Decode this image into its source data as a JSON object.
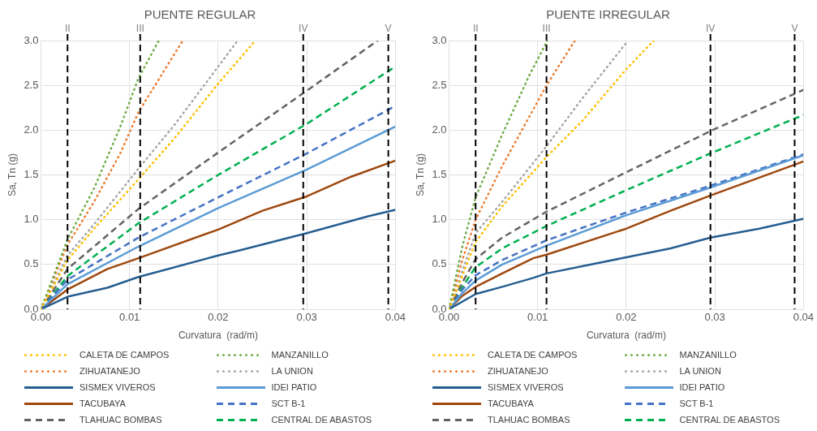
{
  "chart_data": [
    {
      "type": "line",
      "title": "PUENTE REGULAR",
      "xlabel": "Curvatura  (rad/m)",
      "ylabel": "Sa, Tn (g)",
      "xlim": [
        0,
        0.04
      ],
      "ylim": [
        0,
        3
      ],
      "xticks": [
        {
          "value": 0,
          "label": "0.00"
        },
        {
          "value": 0.01,
          "label": "0.01"
        },
        {
          "value": 0.02,
          "label": "0.02"
        },
        {
          "value": 0.03,
          "label": "0.03"
        },
        {
          "value": 0.04,
          "label": "0.04"
        }
      ],
      "yticks": [
        {
          "value": 0,
          "label": "0.0"
        },
        {
          "value": 0.5,
          "label": "0.5"
        },
        {
          "value": 1,
          "label": "1.0"
        },
        {
          "value": 1.5,
          "label": "1.5"
        },
        {
          "value": 2,
          "label": "2.0"
        },
        {
          "value": 2.5,
          "label": "2.5"
        },
        {
          "value": 3,
          "label": "3.0"
        }
      ],
      "grid": true,
      "legend": "bottom",
      "marker": "none",
      "ref_lines": [
        {
          "axis": "x",
          "value": 0.003,
          "label": "II",
          "color": "#000000",
          "line_style": "dashed"
        },
        {
          "axis": "x",
          "value": 0.0112,
          "label": "III",
          "color": "#000000",
          "line_style": "dashed"
        },
        {
          "axis": "x",
          "value": 0.0296,
          "label": "IV",
          "color": "#000000",
          "line_style": "dashed"
        },
        {
          "axis": "x",
          "value": 0.0392,
          "label": "V",
          "color": "#000000",
          "line_style": "dashed"
        }
      ],
      "series": [
        {
          "name": "CALETA DE CAMPOS",
          "color": "#ffc000",
          "line_style": "dotted",
          "x": [
            0,
            0.003,
            0.006,
            0.011,
            0.015,
            0.02,
            0.0242
          ],
          "values": [
            0,
            0.55,
            0.9,
            1.45,
            1.9,
            2.52,
            3.0
          ]
        },
        {
          "name": "MANZANILLO",
          "color": "#70ad47",
          "line_style": "dotted",
          "x": [
            0,
            0.003,
            0.006,
            0.009,
            0.011,
            0.0133
          ],
          "values": [
            0,
            0.78,
            1.35,
            2.05,
            2.58,
            3.0
          ]
        },
        {
          "name": "ZIHUATANEJO",
          "color": "#ed7d31",
          "line_style": "dotted",
          "x": [
            0,
            0.003,
            0.006,
            0.009,
            0.011,
            0.016
          ],
          "values": [
            0,
            0.72,
            1.2,
            1.75,
            2.2,
            3.0
          ]
        },
        {
          "name": "LA UNION",
          "color": "#a5a5a5",
          "line_style": "dotted",
          "x": [
            0,
            0.003,
            0.006,
            0.011,
            0.015,
            0.0222
          ],
          "values": [
            0,
            0.6,
            0.95,
            1.57,
            2.05,
            3.0
          ]
        },
        {
          "name": "SISMEX VIVEROS",
          "color": "#255e91",
          "line_style": "solid",
          "x": [
            0,
            0.003,
            0.0075,
            0.011,
            0.02,
            0.0225,
            0.03,
            0.037,
            0.04
          ],
          "values": [
            0,
            0.14,
            0.24,
            0.36,
            0.6,
            0.66,
            0.85,
            1.04,
            1.11
          ]
        },
        {
          "name": "IDEI PATIO",
          "color": "#5b9bd5",
          "line_style": "solid",
          "x": [
            0,
            0.003,
            0.011,
            0.02,
            0.03,
            0.04
          ],
          "values": [
            0,
            0.28,
            0.7,
            1.13,
            1.56,
            2.04
          ]
        },
        {
          "name": "TACUBAYA",
          "color": "#9e480e",
          "line_style": "solid",
          "x": [
            0,
            0.003,
            0.0075,
            0.011,
            0.02,
            0.025,
            0.03,
            0.035,
            0.04
          ],
          "values": [
            0,
            0.22,
            0.45,
            0.57,
            0.89,
            1.1,
            1.26,
            1.48,
            1.66
          ]
        },
        {
          "name": "SCT B-1",
          "color": "#4472c4",
          "line_style": "dashed",
          "x": [
            0,
            0.003,
            0.011,
            0.02,
            0.03,
            0.04
          ],
          "values": [
            0,
            0.33,
            0.8,
            1.25,
            1.74,
            2.27
          ]
        },
        {
          "name": "TLAHUAC BOMBAS",
          "color": "#636363",
          "line_style": "dashed",
          "x": [
            0,
            0.003,
            0.011,
            0.02,
            0.03,
            0.038
          ],
          "values": [
            0,
            0.45,
            1.12,
            1.75,
            2.44,
            3.0
          ]
        },
        {
          "name": "CENTRAL DE ABASTOS",
          "color": "#00b050",
          "line_style": "dashed",
          "x": [
            0,
            0.003,
            0.011,
            0.02,
            0.03,
            0.04
          ],
          "values": [
            0,
            0.37,
            0.96,
            1.5,
            2.07,
            2.71
          ]
        }
      ]
    },
    {
      "type": "line",
      "title": "PUENTE IRREGULAR",
      "xlabel": "Curvatura  (rad/m)",
      "ylabel": "Sa, Tn (g)",
      "xlim": [
        0,
        0.04
      ],
      "ylim": [
        0,
        3
      ],
      "xticks": [
        {
          "value": 0,
          "label": "0.00"
        },
        {
          "value": 0.01,
          "label": "0.01"
        },
        {
          "value": 0.02,
          "label": "0.02"
        },
        {
          "value": 0.03,
          "label": "0.03"
        },
        {
          "value": 0.04,
          "label": "0.04"
        }
      ],
      "yticks": [
        {
          "value": 0,
          "label": "0.0"
        },
        {
          "value": 0.5,
          "label": "0.5"
        },
        {
          "value": 1,
          "label": "1.0"
        },
        {
          "value": 1.5,
          "label": "1.5"
        },
        {
          "value": 2,
          "label": "2.0"
        },
        {
          "value": 2.5,
          "label": "2.5"
        },
        {
          "value": 3,
          "label": "3.0"
        }
      ],
      "grid": true,
      "legend": "bottom",
      "marker": "none",
      "ref_lines": [
        {
          "axis": "x",
          "value": 0.003,
          "label": "II",
          "color": "#000000",
          "line_style": "dashed"
        },
        {
          "axis": "x",
          "value": 0.011,
          "label": "III",
          "color": "#000000",
          "line_style": "dashed"
        },
        {
          "axis": "x",
          "value": 0.0295,
          "label": "IV",
          "color": "#000000",
          "line_style": "dashed"
        },
        {
          "axis": "x",
          "value": 0.039,
          "label": "V",
          "color": "#000000",
          "line_style": "dashed"
        }
      ],
      "series": [
        {
          "name": "CALETA DE CAMPOS",
          "color": "#ffc000",
          "line_style": "dotted",
          "x": [
            0,
            0.003,
            0.006,
            0.011,
            0.015,
            0.02,
            0.0231
          ],
          "values": [
            0,
            0.75,
            1.15,
            1.7,
            2.1,
            2.68,
            3.0
          ]
        },
        {
          "name": "MANZANILLO",
          "color": "#70ad47",
          "line_style": "dotted",
          "x": [
            0,
            0.0015,
            0.003,
            0.006,
            0.009,
            0.0111
          ],
          "values": [
            0,
            0.7,
            1.25,
            1.95,
            2.6,
            3.0
          ]
        },
        {
          "name": "ZIHUATANEJO",
          "color": "#ed7d31",
          "line_style": "dotted",
          "x": [
            0,
            0.0015,
            0.003,
            0.006,
            0.011,
            0.0142
          ],
          "values": [
            0,
            0.55,
            1.0,
            1.6,
            2.5,
            3.0
          ]
        },
        {
          "name": "LA UNION",
          "color": "#a5a5a5",
          "line_style": "dotted",
          "x": [
            0,
            0.003,
            0.006,
            0.011,
            0.015,
            0.0202
          ],
          "values": [
            0,
            0.85,
            1.2,
            1.82,
            2.35,
            3.0
          ]
        },
        {
          "name": "SISMEX VIVEROS",
          "color": "#255e91",
          "line_style": "solid",
          "x": [
            0,
            0.003,
            0.006,
            0.0095,
            0.011,
            0.02,
            0.025,
            0.0295,
            0.035,
            0.04
          ],
          "values": [
            0,
            0.17,
            0.25,
            0.35,
            0.4,
            0.58,
            0.68,
            0.8,
            0.9,
            1.01
          ]
        },
        {
          "name": "IDEI PATIO",
          "color": "#5b9bd5",
          "line_style": "solid",
          "x": [
            0,
            0.0015,
            0.003,
            0.006,
            0.011,
            0.02,
            0.0295,
            0.04
          ],
          "values": [
            0,
            0.18,
            0.32,
            0.5,
            0.71,
            1.05,
            1.36,
            1.72
          ]
        },
        {
          "name": "TACUBAYA",
          "color": "#9e480e",
          "line_style": "solid",
          "x": [
            0,
            0.0015,
            0.003,
            0.006,
            0.0095,
            0.011,
            0.02,
            0.025,
            0.0295,
            0.035,
            0.04
          ],
          "values": [
            0,
            0.15,
            0.25,
            0.4,
            0.57,
            0.61,
            0.9,
            1.1,
            1.27,
            1.47,
            1.65
          ]
        },
        {
          "name": "SCT B-1",
          "color": "#4472c4",
          "line_style": "dashed",
          "x": [
            0,
            0.0015,
            0.003,
            0.006,
            0.011,
            0.02,
            0.0295,
            0.04
          ],
          "values": [
            0,
            0.22,
            0.38,
            0.55,
            0.77,
            1.08,
            1.38,
            1.73
          ]
        },
        {
          "name": "TLAHUAC BOMBAS",
          "color": "#636363",
          "line_style": "dashed",
          "x": [
            0,
            0.0015,
            0.003,
            0.006,
            0.011,
            0.02,
            0.0295,
            0.04
          ],
          "values": [
            0,
            0.3,
            0.56,
            0.8,
            1.09,
            1.53,
            1.99,
            2.45
          ]
        },
        {
          "name": "CENTRAL DE ABASTOS",
          "color": "#00b050",
          "line_style": "dashed",
          "x": [
            0,
            0.0015,
            0.003,
            0.006,
            0.011,
            0.02,
            0.0295,
            0.04
          ],
          "values": [
            0,
            0.25,
            0.47,
            0.68,
            0.93,
            1.33,
            1.74,
            2.17
          ]
        }
      ]
    }
  ]
}
